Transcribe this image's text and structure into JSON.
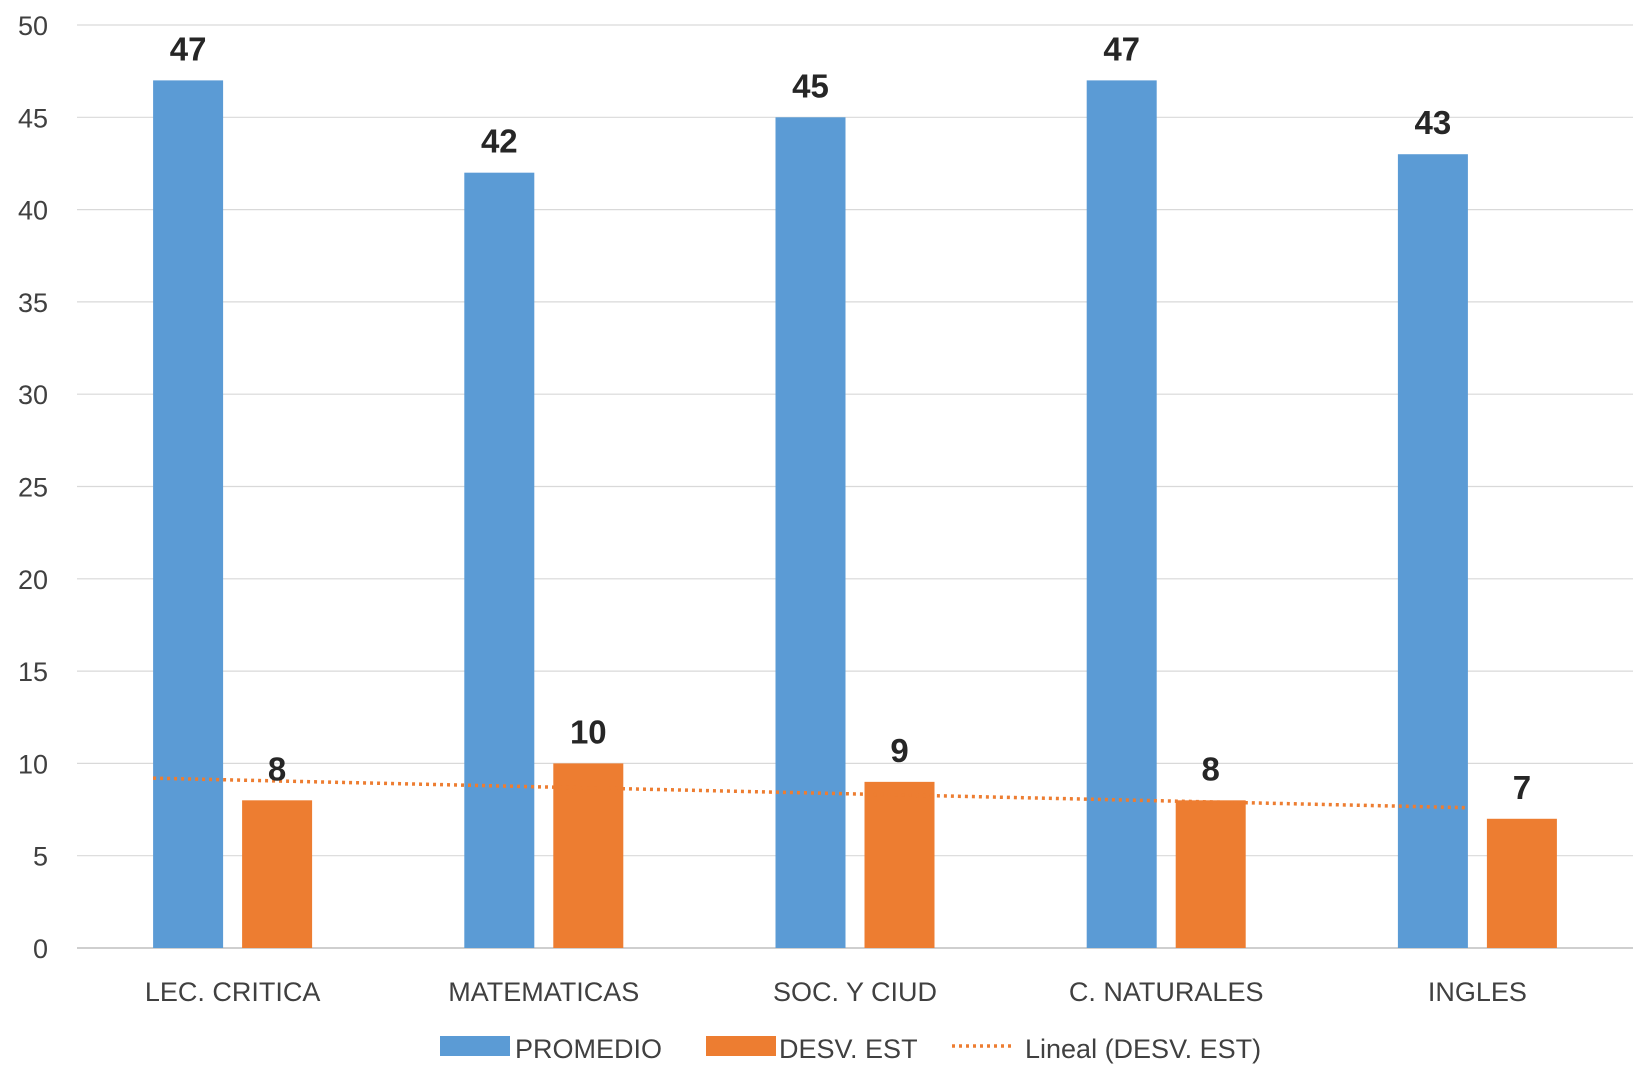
{
  "chart_data": {
    "type": "bar",
    "categories": [
      "LEC. CRITICA",
      "MATEMATICAS",
      "SOC. Y CIUD",
      "C. NATURALES",
      "INGLES"
    ],
    "series": [
      {
        "name": "PROMEDIO",
        "values": [
          47,
          42,
          45,
          47,
          43
        ],
        "color": "#5B9BD5"
      },
      {
        "name": "DESV. EST",
        "values": [
          8,
          10,
          9,
          8,
          7
        ],
        "color": "#ED7D31"
      }
    ],
    "trendline": {
      "name": "Lineal (DESV. EST)",
      "type": "linear",
      "of_series": "DESV. EST",
      "style": "dotted",
      "color": "#ED7D31"
    },
    "ylim": [
      0,
      50
    ],
    "yticks": [
      0,
      5,
      10,
      15,
      20,
      25,
      30,
      35,
      40,
      45,
      50
    ],
    "grid": true,
    "legend_position": "bottom",
    "data_labels": true
  }
}
